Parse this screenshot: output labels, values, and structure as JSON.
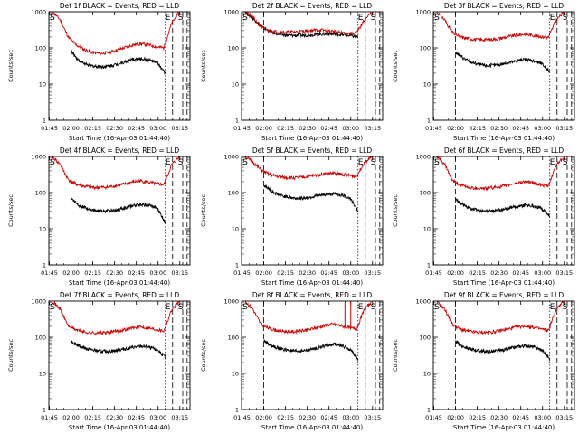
{
  "chart_data": [
    {
      "type": "line",
      "title": "Det 1f BLACK = Events, RED = LLD",
      "xlabel": "Start Time (16-Apr-03 01:44:40)",
      "ylabel": "Counts/sec",
      "yscale": "log",
      "ylim": [
        1,
        1000
      ],
      "xlim": [
        "01:44:40",
        "03:22:00"
      ],
      "xticks": [
        "01:45",
        "02:00",
        "02:15",
        "02:30",
        "02:45",
        "03:00",
        "03:15"
      ],
      "yticks": [
        "1",
        "10",
        "100",
        "1000"
      ],
      "markers": [
        {
          "label": "S",
          "time": "01:46"
        },
        {
          "label": "E",
          "time": "03:10"
        },
        {
          "label": "S",
          "time": "03:15"
        }
      ],
      "series": [
        {
          "color": "#000000",
          "start": "02:00",
          "end": "03:05",
          "values": [
            80,
            45,
            34,
            31,
            30,
            32,
            36,
            42,
            48,
            50,
            46,
            38,
            20
          ]
        },
        {
          "color": "#cc0000",
          "start": "01:47",
          "end": "03:15",
          "values": [
            1000,
            600,
            200,
            120,
            90,
            75,
            70,
            74,
            86,
            100,
            118,
            130,
            122,
            108,
            100,
            500,
            1000
          ]
        }
      ]
    },
    {
      "type": "line",
      "title": "Det 2f BLACK = Events, RED = LLD",
      "xlabel": "Start Time (16-Apr-03 01:44:40)",
      "ylabel": "Counts/sec",
      "yscale": "log",
      "ylim": [
        1,
        1000
      ],
      "xlim": [
        "01:44:40",
        "03:22:00"
      ],
      "xticks": [
        "01:45",
        "02:00",
        "02:15",
        "02:30",
        "02:45",
        "03:00",
        "03:15"
      ],
      "yticks": [
        "1",
        "10",
        "100",
        "1000"
      ],
      "markers": [
        {
          "label": "S",
          "time": "01:46"
        },
        {
          "label": "E",
          "time": "03:10"
        },
        {
          "label": "S",
          "time": "03:15"
        }
      ],
      "series": [
        {
          "color": "#000000",
          "start": "01:47",
          "end": "03:05",
          "values": [
            1000,
            600,
            350,
            260,
            230,
            220,
            222,
            230,
            240,
            245,
            235,
            220,
            200
          ]
        },
        {
          "color": "#cc0000",
          "start": "01:47",
          "end": "03:15",
          "values": [
            1000,
            700,
            380,
            300,
            280,
            272,
            275,
            285,
            300,
            310,
            305,
            290,
            265,
            250,
            260,
            600,
            1000
          ]
        }
      ]
    },
    {
      "type": "line",
      "title": "Det 3f BLACK = Events, RED = LLD",
      "xlabel": "Start Time (16-Apr-03 01:44:40)",
      "ylabel": "Counts/sec",
      "yscale": "log",
      "ylim": [
        1,
        1000
      ],
      "xlim": [
        "01:44:40",
        "03:22:00"
      ],
      "xticks": [
        "01:45",
        "02:00",
        "02:15",
        "02:30",
        "02:45",
        "03:00",
        "03:15"
      ],
      "yticks": [
        "1",
        "10",
        "100",
        "1000"
      ],
      "markers": [
        {
          "label": "S",
          "time": "01:46"
        },
        {
          "label": "E",
          "time": "03:10"
        },
        {
          "label": "S",
          "time": "03:15"
        }
      ],
      "series": [
        {
          "color": "#000000",
          "start": "02:00",
          "end": "03:05",
          "values": [
            75,
            52,
            40,
            35,
            32,
            33,
            36,
            40,
            45,
            48,
            44,
            36,
            22
          ]
        },
        {
          "color": "#cc0000",
          "start": "01:47",
          "end": "03:15",
          "values": [
            1000,
            600,
            260,
            200,
            180,
            170,
            168,
            172,
            185,
            205,
            225,
            240,
            225,
            205,
            195,
            600,
            1000
          ]
        }
      ]
    },
    {
      "type": "line",
      "title": "Det 4f BLACK = Events, RED = LLD",
      "xlabel": "Start Time (16-Apr-03 01:44:40)",
      "ylabel": "Counts/sec",
      "yscale": "log",
      "ylim": [
        1,
        1000
      ],
      "xlim": [
        "01:44:40",
        "03:22:00"
      ],
      "xticks": [
        "01:45",
        "02:00",
        "02:15",
        "02:30",
        "02:45",
        "03:00",
        "03:15"
      ],
      "yticks": [
        "1",
        "10",
        "100",
        "1000"
      ],
      "markers": [
        {
          "label": "S",
          "time": "01:46"
        },
        {
          "label": "E",
          "time": "03:10"
        },
        {
          "label": "S",
          "time": "03:15"
        }
      ],
      "series": [
        {
          "color": "#000000",
          "start": "02:00",
          "end": "03:05",
          "values": [
            70,
            45,
            36,
            32,
            30,
            31,
            34,
            38,
            44,
            47,
            44,
            36,
            15
          ]
        },
        {
          "color": "#cc0000",
          "start": "01:47",
          "end": "03:15",
          "values": [
            1000,
            600,
            230,
            170,
            150,
            140,
            138,
            142,
            155,
            170,
            195,
            210,
            195,
            175,
            165,
            600,
            1000
          ]
        }
      ]
    },
    {
      "type": "line",
      "title": "Det 5f BLACK = Events, RED = LLD",
      "xlabel": "Start Time (16-Apr-03 01:44:40)",
      "ylabel": "Counts/sec",
      "yscale": "log",
      "ylim": [
        1,
        1000
      ],
      "xlim": [
        "01:44:40",
        "03:22:00"
      ],
      "xticks": [
        "01:45",
        "02:00",
        "02:15",
        "02:30",
        "02:45",
        "03:00",
        "03:15"
      ],
      "yticks": [
        "1",
        "10",
        "100",
        "1000"
      ],
      "markers": [
        {
          "label": "S",
          "time": "01:46"
        },
        {
          "label": "E",
          "time": "03:10"
        },
        {
          "label": "S",
          "time": "03:15"
        }
      ],
      "series": [
        {
          "color": "#000000",
          "start": "02:00",
          "end": "03:05",
          "values": [
            160,
            110,
            85,
            75,
            70,
            70,
            75,
            82,
            90,
            92,
            85,
            70,
            30
          ]
        },
        {
          "color": "#cc0000",
          "start": "01:47",
          "end": "03:15",
          "values": [
            1000,
            700,
            420,
            320,
            280,
            260,
            255,
            262,
            280,
            305,
            330,
            345,
            325,
            300,
            280,
            700,
            1000
          ]
        }
      ]
    },
    {
      "type": "line",
      "title": "Det 6f BLACK = Events, RED = LLD",
      "xlabel": "Start Time (16-Apr-03 01:44:40)",
      "ylabel": "Counts/sec",
      "yscale": "log",
      "ylim": [
        1,
        1000
      ],
      "xlim": [
        "01:44:40",
        "03:22:00"
      ],
      "xticks": [
        "01:45",
        "02:00",
        "02:15",
        "02:30",
        "02:45",
        "03:00",
        "03:15"
      ],
      "yticks": [
        "1",
        "10",
        "100",
        "1000"
      ],
      "markers": [
        {
          "label": "S",
          "time": "01:46"
        },
        {
          "label": "E",
          "time": "03:10"
        },
        {
          "label": "S",
          "time": "03:15"
        }
      ],
      "series": [
        {
          "color": "#000000",
          "start": "02:00",
          "end": "03:05",
          "values": [
            65,
            45,
            36,
            32,
            30,
            31,
            34,
            38,
            42,
            45,
            42,
            36,
            22
          ]
        },
        {
          "color": "#cc0000",
          "start": "01:47",
          "end": "03:15",
          "values": [
            1000,
            600,
            210,
            160,
            140,
            132,
            130,
            135,
            146,
            162,
            185,
            200,
            185,
            165,
            150,
            600,
            1000
          ]
        }
      ]
    },
    {
      "type": "line",
      "title": "Det 7f BLACK = Events, RED = LLD",
      "xlabel": "Start Time (16-Apr-03 01:44:40)",
      "ylabel": "Counts/sec",
      "yscale": "log",
      "ylim": [
        1,
        1000
      ],
      "xlim": [
        "01:44:40",
        "03:22:00"
      ],
      "xticks": [
        "01:45",
        "02:00",
        "02:15",
        "02:30",
        "02:45",
        "03:00",
        "03:15"
      ],
      "yticks": [
        "1",
        "10",
        "100",
        "1000"
      ],
      "markers": [
        {
          "label": "S",
          "time": "01:46"
        },
        {
          "label": "E",
          "time": "03:10"
        },
        {
          "label": "S",
          "time": "03:15"
        }
      ],
      "series": [
        {
          "color": "#000000",
          "start": "02:00",
          "end": "03:05",
          "values": [
            78,
            58,
            48,
            43,
            40,
            41,
            44,
            48,
            53,
            56,
            52,
            45,
            28
          ]
        },
        {
          "color": "#cc0000",
          "start": "01:47",
          "end": "03:15",
          "values": [
            1000,
            600,
            210,
            160,
            140,
            132,
            130,
            135,
            146,
            162,
            180,
            195,
            182,
            165,
            150,
            600,
            1000
          ]
        }
      ]
    },
    {
      "type": "line",
      "title": "Det 8f BLACK = Events, RED = LLD",
      "xlabel": "Start Time (16-Apr-03 01:44:40)",
      "ylabel": "Counts/sec",
      "yscale": "log",
      "ylim": [
        1,
        1000
      ],
      "xlim": [
        "01:44:40",
        "03:22:00"
      ],
      "xticks": [
        "01:45",
        "02:00",
        "02:15",
        "02:30",
        "02:45",
        "03:00",
        "03:15"
      ],
      "yticks": [
        "1",
        "10",
        "100",
        "1000"
      ],
      "markers": [
        {
          "label": "S",
          "time": "01:46"
        },
        {
          "label": "E",
          "time": "03:10"
        },
        {
          "label": "S",
          "time": "03:15"
        }
      ],
      "spikes": [
        {
          "time": "02:56",
          "value": 1000
        },
        {
          "time": "03:00",
          "value": 1000
        }
      ],
      "series": [
        {
          "color": "#000000",
          "start": "02:00",
          "end": "03:05",
          "values": [
            80,
            58,
            48,
            44,
            41,
            42,
            46,
            52,
            60,
            64,
            58,
            45,
            25
          ]
        },
        {
          "color": "#cc0000",
          "start": "01:47",
          "end": "03:15",
          "values": [
            1000,
            600,
            230,
            175,
            155,
            145,
            142,
            148,
            162,
            182,
            210,
            230,
            210,
            185,
            170,
            600,
            1000
          ]
        }
      ]
    },
    {
      "type": "line",
      "title": "Det 9f BLACK = Events, RED = LLD",
      "xlabel": "Start Time (16-Apr-03 01:44:40)",
      "ylabel": "Counts/sec",
      "yscale": "log",
      "ylim": [
        1,
        1000
      ],
      "xlim": [
        "01:44:40",
        "03:22:00"
      ],
      "xticks": [
        "01:45",
        "02:00",
        "02:15",
        "02:30",
        "02:45",
        "03:00",
        "03:15"
      ],
      "yticks": [
        "1",
        "10",
        "100",
        "1000"
      ],
      "markers": [
        {
          "label": "S",
          "time": "01:46"
        },
        {
          "label": "E",
          "time": "03:10"
        },
        {
          "label": "S",
          "time": "03:15"
        }
      ],
      "series": [
        {
          "color": "#000000",
          "start": "02:00",
          "end": "03:05",
          "values": [
            75,
            55,
            46,
            42,
            40,
            41,
            44,
            49,
            55,
            58,
            53,
            44,
            25
          ]
        },
        {
          "color": "#cc0000",
          "start": "01:47",
          "end": "03:15",
          "values": [
            1000,
            600,
            220,
            165,
            145,
            138,
            135,
            140,
            152,
            170,
            190,
            205,
            190,
            170,
            155,
            600,
            1000
          ]
        }
      ]
    }
  ]
}
